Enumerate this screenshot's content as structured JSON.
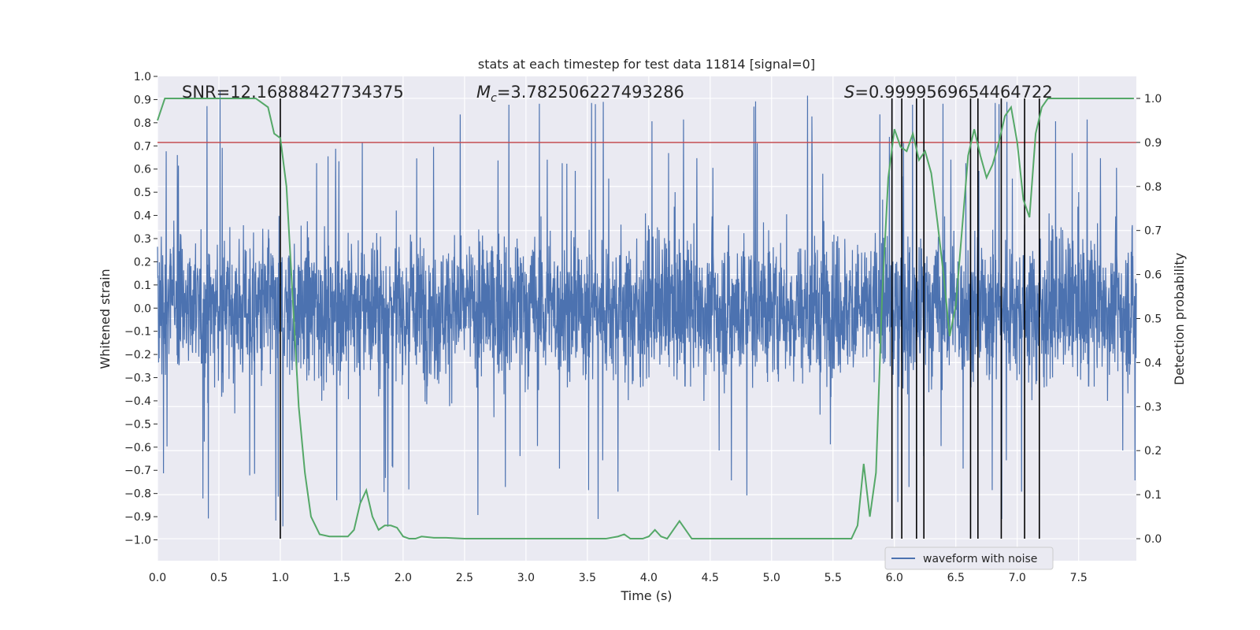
{
  "chart_data": {
    "type": "line",
    "title": "stats at each timestep for test data 11814 [signal=0]",
    "xlabel": "Time (s)",
    "ylabel": "Whitened strain",
    "ylabel_right": "Detection probability",
    "xlim": [
      0.0,
      7.97
    ],
    "ylim": [
      -1.09,
      1.0
    ],
    "ylim_right": [
      -0.05,
      1.05
    ],
    "xticks": [
      "0.0",
      "0.5",
      "1.0",
      "1.5",
      "2.0",
      "2.5",
      "3.0",
      "3.5",
      "4.0",
      "4.5",
      "5.0",
      "5.5",
      "6.0",
      "6.5",
      "7.0",
      "7.5"
    ],
    "yticks": [
      "1.0",
      "0.9",
      "0.8",
      "0.7",
      "0.6",
      "0.5",
      "0.4",
      "0.3",
      "0.2",
      "0.1",
      "0.0",
      "−0.1",
      "−0.2",
      "−0.3",
      "−0.4",
      "−0.5",
      "−0.6",
      "−0.7",
      "−0.8",
      "−0.9",
      "−1.0"
    ],
    "yticks_right": [
      "1.0",
      "0.9",
      "0.8",
      "0.7",
      "0.6",
      "0.5",
      "0.4",
      "0.3",
      "0.2",
      "0.1",
      "0.0"
    ],
    "grid": true,
    "legend": {
      "position": "lower-right",
      "entries": [
        "waveform with noise"
      ]
    },
    "annotations": {
      "snr": "SNR=12.16888427734375",
      "mc_symbol": "M",
      "mc_sub": "c",
      "mc_value": "=3.782506227493286",
      "s_symbol": "S",
      "s_value": "=0.9999569654464722"
    },
    "threshold_line": {
      "axis": "right",
      "value": 0.9,
      "color": "#c44e52"
    },
    "vertical_markers": [
      1.0,
      5.98,
      6.06,
      6.18,
      6.24,
      6.62,
      6.68,
      6.87,
      7.06,
      7.18
    ],
    "series": [
      {
        "name": "waveform with noise",
        "axis": "left",
        "color": "#4c72b0",
        "kind": "noise",
        "typical_amplitude": 0.4,
        "peak_amplitude": 0.9
      },
      {
        "axis": "right",
        "color": "#55a868",
        "x": [
          0.0,
          0.06,
          0.5,
          0.8,
          0.9,
          0.95,
          1.0,
          1.05,
          1.1,
          1.15,
          1.2,
          1.25,
          1.32,
          1.4,
          1.5,
          1.55,
          1.6,
          1.65,
          1.7,
          1.75,
          1.8,
          1.85,
          1.9,
          1.95,
          2.0,
          2.05,
          2.1,
          2.15,
          2.25,
          2.35,
          2.5,
          2.75,
          3.0,
          3.25,
          3.5,
          3.65,
          3.75,
          3.8,
          3.85,
          3.95,
          4.0,
          4.05,
          4.1,
          4.15,
          4.2,
          4.25,
          4.3,
          4.35,
          4.4,
          4.45,
          4.5,
          4.75,
          5.0,
          5.25,
          5.5,
          5.65,
          5.7,
          5.75,
          5.8,
          5.85,
          5.9,
          5.95,
          6.0,
          6.05,
          6.1,
          6.15,
          6.2,
          6.25,
          6.3,
          6.35,
          6.4,
          6.45,
          6.5,
          6.55,
          6.6,
          6.65,
          6.7,
          6.75,
          6.8,
          6.85,
          6.9,
          6.95,
          7.0,
          7.05,
          7.1,
          7.15,
          7.2,
          7.25,
          7.3,
          7.35,
          7.5,
          7.75,
          7.95
        ],
        "y": [
          0.95,
          1.0,
          1.0,
          1.0,
          0.98,
          0.92,
          0.91,
          0.8,
          0.55,
          0.3,
          0.15,
          0.05,
          0.01,
          0.005,
          0.005,
          0.005,
          0.02,
          0.08,
          0.11,
          0.05,
          0.02,
          0.03,
          0.03,
          0.025,
          0.005,
          0.0,
          0.0,
          0.005,
          0.002,
          0.002,
          0.0,
          0.0,
          0.0,
          0.0,
          0.0,
          0.0,
          0.005,
          0.01,
          0.0,
          0.0,
          0.005,
          0.02,
          0.005,
          0.0,
          0.02,
          0.04,
          0.02,
          0.0,
          0.0,
          0.0,
          0.0,
          0.0,
          0.0,
          0.0,
          0.0,
          0.0,
          0.03,
          0.17,
          0.05,
          0.15,
          0.55,
          0.82,
          0.93,
          0.89,
          0.88,
          0.92,
          0.86,
          0.88,
          0.83,
          0.72,
          0.6,
          0.46,
          0.53,
          0.7,
          0.87,
          0.93,
          0.87,
          0.82,
          0.85,
          0.9,
          0.96,
          0.98,
          0.9,
          0.77,
          0.73,
          0.92,
          0.98,
          1.0,
          1.0,
          1.0,
          1.0,
          1.0,
          1.0
        ]
      }
    ]
  }
}
